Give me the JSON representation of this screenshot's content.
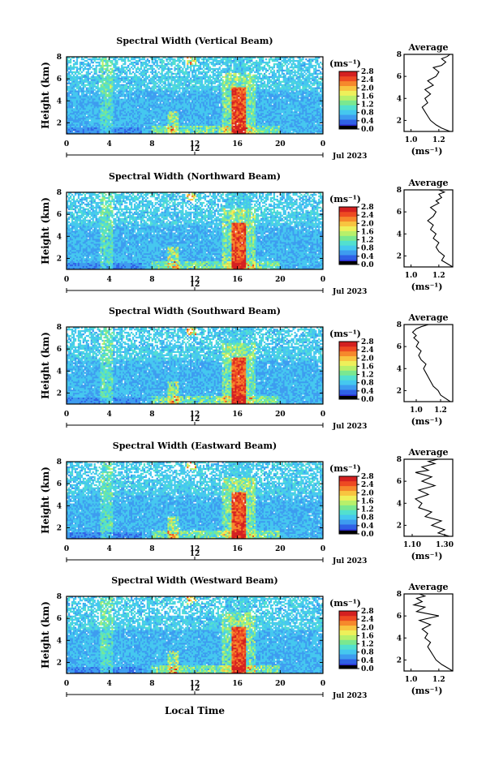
{
  "figure": {
    "x_label": "Local Time",
    "y_label": "Height (km)",
    "y_ticks": [
      "2",
      "4",
      "6",
      "8"
    ],
    "time_ticks": [
      "0",
      "4",
      "8",
      "12",
      "16",
      "20",
      "0"
    ],
    "date_tick": "12",
    "date_label": "Jul 2023",
    "colorbar_unit": "(ms⁻¹)",
    "avg_title": "Average",
    "avg_xunit": "(ms⁻¹)",
    "colorscale": [
      "#2a2acf",
      "#2f62e6",
      "#3d9cf0",
      "#45c8ef",
      "#52e0cf",
      "#7ae890",
      "#b8f06a",
      "#eef05a",
      "#f8c440",
      "#f6882c",
      "#ee4a22",
      "#d42020"
    ]
  },
  "panels": [
    {
      "title": "Spectral Width (Vertical Beam)",
      "cbar_ticks": [
        "2.8",
        "2.4",
        "2.0",
        "1.6",
        "1.2",
        "0.8",
        "0.4",
        "0.0"
      ],
      "avg_xticks": [
        "1.0",
        "1.2"
      ]
    },
    {
      "title": "Spectral Width (Northward Beam)",
      "cbar_ticks": [
        "2.8",
        "2.4",
        "2.0",
        "1.6",
        "1.2",
        "0.8",
        "0.4",
        "0.0"
      ],
      "avg_xticks": [
        "1.0",
        "1.2"
      ]
    },
    {
      "title": "Spectral Width (Southward Beam)",
      "cbar_ticks": [
        "2.8",
        "2.4",
        "2.0",
        "1.6",
        "1.2",
        "0.8",
        "0.4",
        "0.0"
      ],
      "avg_xticks": [
        "1.0",
        "1.2"
      ]
    },
    {
      "title": "Spectral Width (Eastward Beam)",
      "cbar_ticks": [
        "2.8",
        "2.4",
        "2.0",
        "1.6",
        "1.2",
        "0.8",
        "0.4",
        "0.0"
      ],
      "avg_xticks": [
        "1.10",
        "1.30"
      ]
    },
    {
      "title": "Spectral Width (Westward Beam)",
      "cbar_ticks": [
        "2.8",
        "2.4",
        "2.0",
        "1.6",
        "1.2",
        "0.8",
        "0.4",
        "0.0"
      ],
      "avg_xticks": [
        "1.0",
        "1.2"
      ]
    }
  ],
  "chart_data": [
    {
      "type": "heatmap",
      "title": "Spectral Width (Vertical Beam)",
      "xlabel": "Local Time",
      "ylabel": "Height (km)",
      "xlim": [
        0,
        24
      ],
      "ylim": [
        1,
        8
      ],
      "colorbar_range": [
        0.0,
        2.8
      ],
      "features": "Mostly 0.4-1.2 ms-1 background; strong maximum (>2.4 ms-1) near 16 LT between 1.5 and 5 km; enhanced band near 3.5-4 LT and 10 LT; data gaps above ~6 km."
    },
    {
      "type": "line",
      "title": "Average",
      "xlabel": "(ms⁻¹)",
      "ylabel": "Height (km)",
      "xlim": [
        0.95,
        1.3
      ],
      "ylim": [
        1,
        8
      ],
      "x": [
        1.28,
        1.22,
        1.18,
        1.14,
        1.12,
        1.1,
        1.08,
        1.12,
        1.1,
        1.14,
        1.1,
        1.16,
        1.12,
        1.18,
        1.2,
        1.16,
        1.22,
        1.25,
        1.22,
        1.26,
        1.28
      ],
      "y": [
        1.0,
        1.3,
        1.6,
        2.0,
        2.4,
        2.8,
        3.2,
        3.6,
        4.0,
        4.4,
        4.8,
        5.2,
        5.6,
        6.0,
        6.4,
        6.8,
        7.0,
        7.3,
        7.6,
        7.8,
        8.0
      ]
    },
    {
      "type": "heatmap",
      "title": "Spectral Width (Northward Beam)",
      "xlabel": "Local Time",
      "ylabel": "Height (km)",
      "xlim": [
        0,
        24
      ],
      "ylim": [
        1,
        8
      ],
      "colorbar_range": [
        0.0,
        2.8
      ],
      "features": "Background 0.4-1.2 ms-1; maximum near 16 LT from 1.5 to 5.5 km; secondary enhancements near 4 and 10 LT."
    },
    {
      "type": "line",
      "title": "Average",
      "xlabel": "(ms⁻¹)",
      "ylabel": "Height (km)",
      "xlim": [
        0.95,
        1.3
      ],
      "ylim": [
        1,
        8
      ],
      "x": [
        1.3,
        1.26,
        1.22,
        1.24,
        1.2,
        1.18,
        1.2,
        1.16,
        1.18,
        1.14,
        1.16,
        1.12,
        1.16,
        1.18,
        1.14,
        1.2,
        1.18,
        1.22,
        1.2,
        1.24,
        1.2
      ],
      "y": [
        1.0,
        1.3,
        1.6,
        2.0,
        2.4,
        2.8,
        3.2,
        3.6,
        4.0,
        4.4,
        4.8,
        5.2,
        5.6,
        6.0,
        6.4,
        6.8,
        7.0,
        7.3,
        7.6,
        7.8,
        8.0
      ]
    },
    {
      "type": "heatmap",
      "title": "Spectral Width (Southward Beam)",
      "xlabel": "Local Time",
      "ylabel": "Height (km)",
      "xlim": [
        0,
        24
      ],
      "ylim": [
        1,
        8
      ],
      "colorbar_range": [
        0.0,
        2.8
      ],
      "features": "Background 0.4-1.2 ms-1; maximum near 16 LT below 5 km; weaker enhancements near 4 and 10 LT."
    },
    {
      "type": "line",
      "title": "Average",
      "xlabel": "(ms⁻¹)",
      "ylabel": "Height (km)",
      "xlim": [
        0.9,
        1.3
      ],
      "ylim": [
        1,
        8
      ],
      "x": [
        1.28,
        1.24,
        1.2,
        1.18,
        1.14,
        1.12,
        1.1,
        1.08,
        1.06,
        1.08,
        1.04,
        1.02,
        1.04,
        1.0,
        1.02,
        0.98,
        1.0,
        0.97,
        1.0,
        1.04,
        1.1
      ],
      "y": [
        1.0,
        1.3,
        1.6,
        2.0,
        2.4,
        2.8,
        3.2,
        3.6,
        4.0,
        4.4,
        4.8,
        5.2,
        5.6,
        6.0,
        6.4,
        6.8,
        7.0,
        7.3,
        7.6,
        7.8,
        8.0
      ]
    },
    {
      "type": "heatmap",
      "title": "Spectral Width (Eastward Beam)",
      "xlabel": "Local Time",
      "ylabel": "Height (km)",
      "xlim": [
        0,
        24
      ],
      "ylim": [
        1,
        8
      ],
      "colorbar_range": [
        0.0,
        2.8
      ],
      "features": "Background 0.4-1.2 ms-1; maximum near 16 LT below 5 km; enhancements near 4 and 10 LT."
    },
    {
      "type": "line",
      "title": "Average",
      "xlabel": "(ms⁻¹)",
      "ylabel": "Height (km)",
      "xlim": [
        1.05,
        1.35
      ],
      "ylim": [
        1,
        8
      ],
      "x": [
        1.33,
        1.26,
        1.3,
        1.22,
        1.28,
        1.18,
        1.22,
        1.14,
        1.16,
        1.12,
        1.2,
        1.14,
        1.24,
        1.16,
        1.22,
        1.12,
        1.2,
        1.16,
        1.24,
        1.2,
        1.26
      ],
      "y": [
        1.0,
        1.3,
        1.6,
        2.0,
        2.4,
        2.8,
        3.2,
        3.6,
        4.0,
        4.4,
        4.8,
        5.2,
        5.6,
        6.0,
        6.4,
        6.8,
        7.0,
        7.3,
        7.6,
        7.8,
        8.0
      ]
    },
    {
      "type": "heatmap",
      "title": "Spectral Width (Westward Beam)",
      "xlabel": "Local Time",
      "ylabel": "Height (km)",
      "xlim": [
        0,
        24
      ],
      "ylim": [
        1,
        8
      ],
      "colorbar_range": [
        0.0,
        2.8
      ],
      "features": "Background 0.4-1.2 ms-1; maximum near 16 LT below 5.5 km; enhancements near 4 and 10 LT."
    },
    {
      "type": "line",
      "title": "Average",
      "xlabel": "(ms⁻¹)",
      "ylabel": "Height (km)",
      "xlim": [
        0.95,
        1.3
      ],
      "ylim": [
        1,
        8
      ],
      "x": [
        1.3,
        1.26,
        1.22,
        1.18,
        1.16,
        1.14,
        1.12,
        1.14,
        1.1,
        1.12,
        1.08,
        1.14,
        1.06,
        1.2,
        1.04,
        1.1,
        1.02,
        1.08,
        1.04,
        1.1,
        1.06
      ],
      "y": [
        1.0,
        1.3,
        1.6,
        2.0,
        2.4,
        2.8,
        3.2,
        3.6,
        4.0,
        4.4,
        4.8,
        5.2,
        5.6,
        6.0,
        6.4,
        6.8,
        7.0,
        7.3,
        7.6,
        7.8,
        8.0
      ]
    }
  ]
}
